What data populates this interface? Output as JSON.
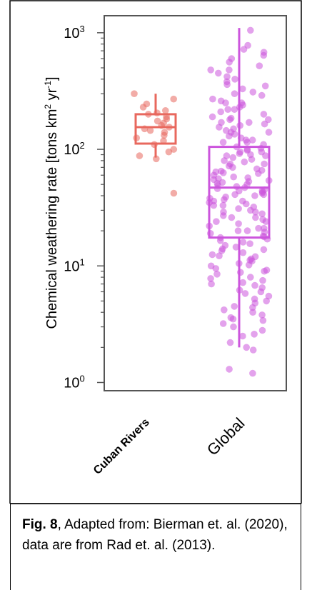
{
  "chart_data": {
    "type": "box",
    "ylabel_main": "Chemical weathering rate [tons km",
    "ylabel_sup1": "2",
    "ylabel_mid": " yr",
    "ylabel_sup2": "-1",
    "ylabel_end": "]",
    "yscale": "log",
    "ylim": [
      0.85,
      1400
    ],
    "y_ticks": [
      {
        "value": 1,
        "base": "10",
        "exp": "0"
      },
      {
        "value": 10,
        "base": "10",
        "exp": "1"
      },
      {
        "value": 100,
        "base": "10",
        "exp": "2"
      },
      {
        "value": 1000,
        "base": "10",
        "exp": "3"
      }
    ],
    "categories": [
      "Cuban Rivers",
      "Global"
    ],
    "series": [
      {
        "category": "Cuban Rivers",
        "color": "#e8685e",
        "q1": 112,
        "median": 155,
        "q3": 200,
        "whisker_low": 85,
        "whisker_high": 300,
        "points": [
          300,
          270,
          245,
          230,
          215,
          205,
          200,
          190,
          182,
          175,
          168,
          160,
          155,
          150,
          145,
          140,
          132,
          125,
          118,
          110,
          100,
          95,
          88,
          83,
          42
        ]
      },
      {
        "category": "Global",
        "color": "#cc55dd",
        "q1": 17.5,
        "median": 47,
        "q3": 105,
        "whisker_low": 2,
        "whisker_high": 1100,
        "points": [
          1050,
          780,
          720,
          680,
          640,
          600,
          560,
          520,
          480,
          450,
          420,
          400,
          380,
          350,
          330,
          310,
          290,
          270,
          250,
          240,
          230,
          220,
          210,
          200,
          190,
          185,
          180,
          170,
          165,
          160,
          155,
          150,
          145,
          140,
          135,
          130,
          125,
          120,
          115,
          110,
          105,
          102,
          100,
          98,
          95,
          92,
          90,
          88,
          85,
          82,
          80,
          78,
          75,
          72,
          70,
          68,
          66,
          64,
          62,
          60,
          58,
          56,
          55,
          54,
          52,
          50,
          49,
          48,
          47,
          46,
          45,
          44,
          43,
          42,
          41,
          40,
          39,
          38,
          37,
          36,
          35,
          34,
          33,
          32,
          31,
          30,
          29,
          28,
          27,
          26,
          25,
          24,
          23,
          22,
          21,
          20,
          19.5,
          19,
          18,
          17.5,
          17,
          16,
          15.5,
          15,
          14,
          13.5,
          13,
          12.5,
          12,
          11.5,
          11,
          10.5,
          10,
          9.5,
          9,
          8.5,
          8,
          7.5,
          7,
          6.5,
          6,
          5.5,
          5,
          4.8,
          4.5,
          4.2,
          4,
          3.8,
          3.5,
          3.2,
          3,
          2.8,
          2.5,
          2.2,
          2,
          1.9,
          1.3,
          1.2,
          300,
          260,
          220,
          180,
          140,
          115,
          95,
          75,
          65,
          57,
          51,
          44,
          36,
          29,
          24,
          20,
          16.5,
          14.5,
          12.2,
          10.2,
          8.8,
          7.2,
          6.2,
          5.2,
          3.6,
          2.6,
          480,
          360,
          250,
          170,
          120,
          88,
          63,
          53,
          41,
          33,
          26,
          21,
          17.8,
          13.8,
          11.2,
          9.2,
          7.8,
          6.8,
          5.8,
          4.4,
          3.4
        ]
      }
    ]
  },
  "caption": {
    "label": "Fig. 8",
    "text": ", Adapted from: Bierman et. al. (2020), data are from Rad et. al. (2013)."
  }
}
